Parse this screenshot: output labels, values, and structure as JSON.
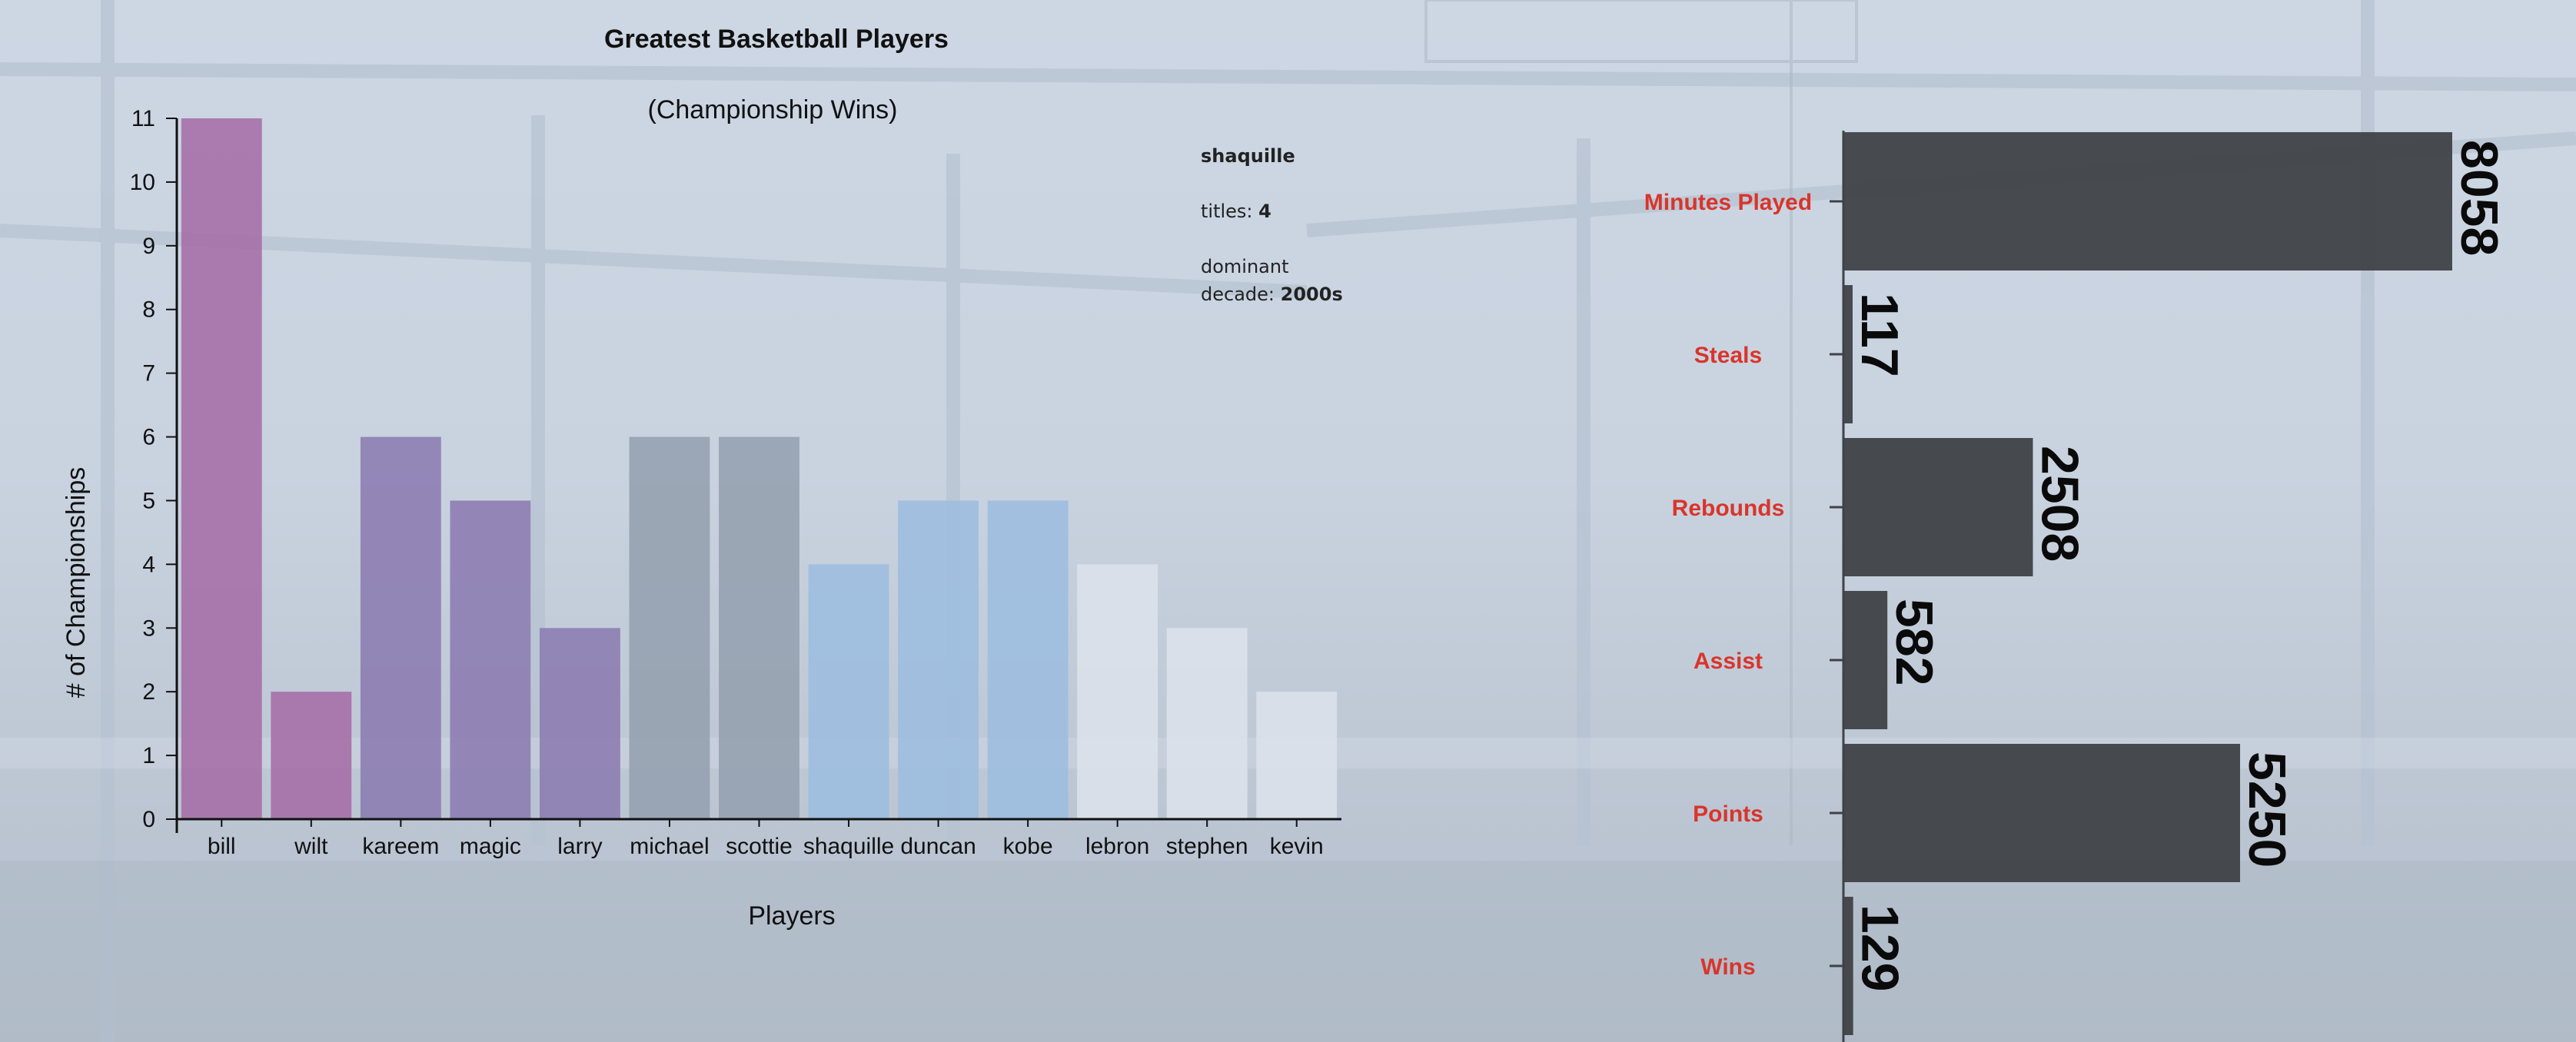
{
  "chart_data": [
    {
      "type": "bar",
      "title": "Greatest Basketball Players",
      "subtitle": "(Championship Wins)",
      "xlabel": "Players",
      "ylabel": "# of Championships",
      "categories": [
        "bill",
        "wilt",
        "kareem",
        "magic",
        "larry",
        "michael",
        "scottie",
        "shaquille",
        "duncan",
        "kobe",
        "lebron",
        "stephen",
        "kevin"
      ],
      "values": [
        11,
        2,
        6,
        5,
        3,
        6,
        6,
        4,
        5,
        5,
        4,
        3,
        2
      ],
      "ylim": [
        0,
        11
      ],
      "yticks": [
        0,
        1,
        2,
        3,
        4,
        5,
        6,
        7,
        8,
        9,
        10,
        11
      ],
      "colors": [
        "#a46aa5",
        "#a46aa5",
        "#8a79b0",
        "#8a79b0",
        "#8a79b0",
        "#939fae",
        "#939fae",
        "#9bbcdf",
        "#9bbcdf",
        "#9bbcdf",
        "#dde3eb",
        "#dde3eb",
        "#dde3eb"
      ],
      "grid": false
    },
    {
      "type": "bar",
      "orientation": "horizontal",
      "categories": [
        "Minutes Played",
        "Steals",
        "Rebounds",
        "Assist",
        "Points",
        "Wins"
      ],
      "values": [
        8058,
        117,
        2508,
        582,
        5250,
        129
      ],
      "xlim": [
        0,
        8058
      ],
      "bar_color": "#3f4247",
      "label_color": "#d9352b",
      "grid": false
    }
  ],
  "tooltip": {
    "player": "shaquille",
    "titles_label": "titles:",
    "titles_value": "4",
    "decade_label_1": "dominant",
    "decade_label_2": "decade:",
    "decade_value": "2000s"
  }
}
